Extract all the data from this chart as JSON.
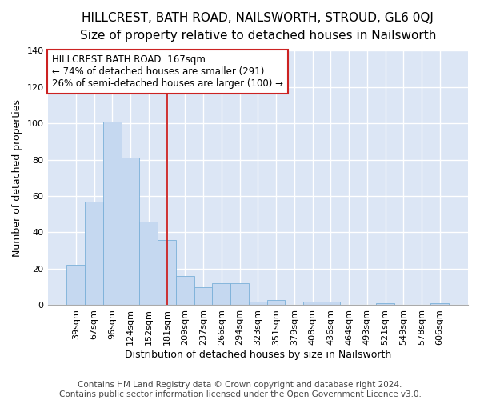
{
  "title": "HILLCREST, BATH ROAD, NAILSWORTH, STROUD, GL6 0QJ",
  "subtitle": "Size of property relative to detached houses in Nailsworth",
  "xlabel": "Distribution of detached houses by size in Nailsworth",
  "ylabel": "Number of detached properties",
  "categories": [
    "39sqm",
    "67sqm",
    "96sqm",
    "124sqm",
    "152sqm",
    "181sqm",
    "209sqm",
    "237sqm",
    "266sqm",
    "294sqm",
    "323sqm",
    "351sqm",
    "379sqm",
    "408sqm",
    "436sqm",
    "464sqm",
    "493sqm",
    "521sqm",
    "549sqm",
    "578sqm",
    "606sqm"
  ],
  "values": [
    22,
    57,
    101,
    81,
    46,
    36,
    16,
    10,
    12,
    12,
    2,
    3,
    0,
    2,
    2,
    0,
    0,
    1,
    0,
    0,
    1
  ],
  "bar_color": "#c5d8f0",
  "bar_edge_color": "#7ab0d8",
  "vline_x": 5,
  "vline_color": "#cc2222",
  "annotation_line1": "HILLCREST BATH ROAD: 167sqm",
  "annotation_line2": "← 74% of detached houses are smaller (291)",
  "annotation_line3": "26% of semi-detached houses are larger (100) →",
  "annotation_box_color": "#ffffff",
  "annotation_box_edge": "#cc2222",
  "ylim": [
    0,
    140
  ],
  "yticks": [
    0,
    20,
    40,
    60,
    80,
    100,
    120,
    140
  ],
  "background_color": "#dce6f5",
  "grid_color": "#ffffff",
  "fig_background": "#ffffff",
  "title_fontsize": 11,
  "subtitle_fontsize": 10,
  "label_fontsize": 9,
  "tick_fontsize": 8,
  "footer_fontsize": 7.5,
  "footer": "Contains HM Land Registry data © Crown copyright and database right 2024.\nContains public sector information licensed under the Open Government Licence v3.0."
}
